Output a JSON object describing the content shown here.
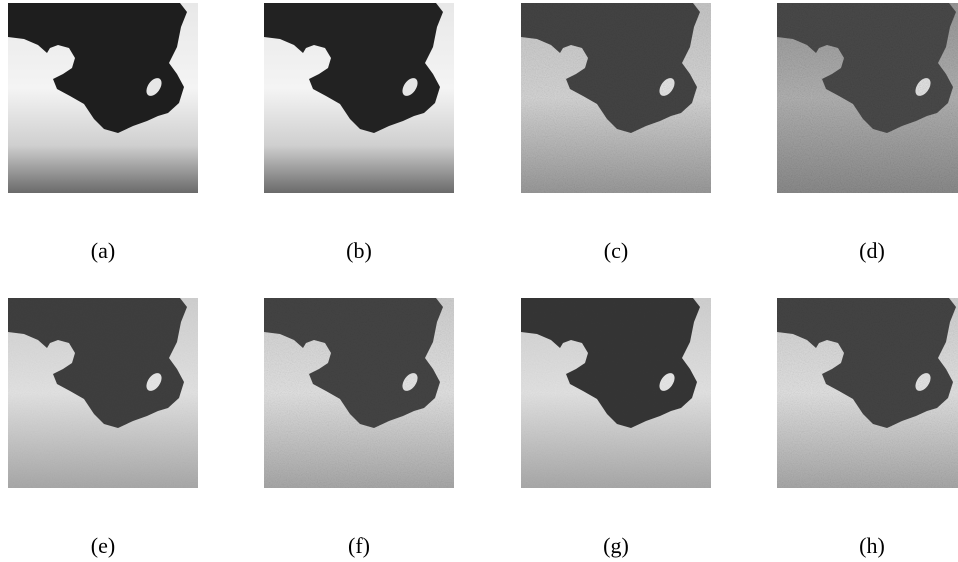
{
  "figure": {
    "subfigure_labels": [
      "(a)",
      "(b)",
      "(c)",
      "(d)",
      "(e)",
      "(f)",
      "(g)",
      "(h)"
    ]
  }
}
